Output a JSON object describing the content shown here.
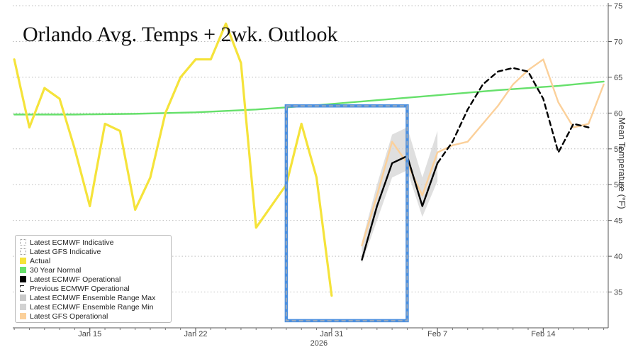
{
  "chart_data": {
    "type": "line",
    "title": "Orlando Avg. Temps + 2wk. Outlook",
    "ylabel": "Mean Temperature (°F)",
    "year_label": "2026",
    "ylim": [
      30,
      75
    ],
    "y_ticks": [
      35,
      40,
      45,
      50,
      55,
      60,
      65,
      70,
      75
    ],
    "x_range": [
      "2026-01-10",
      "2026-02-18"
    ],
    "x_ticks": [
      {
        "date": "2026-01-15",
        "label": "Jan 15"
      },
      {
        "date": "2026-01-22",
        "label": "Jan 22"
      },
      {
        "date": "2026-01-31",
        "label": "Jan 31"
      },
      {
        "date": "2026-02-07",
        "label": "Feb 7"
      },
      {
        "date": "2026-02-14",
        "label": "Feb 14"
      }
    ],
    "grid": "horizontal dotted",
    "legend_position": "bottom-left",
    "highlight_box": {
      "x": [
        "2026-01-28",
        "2026-02-05"
      ],
      "y": [
        31,
        61
      ]
    },
    "series": [
      {
        "name": "Actual",
        "color": "#f5e33a",
        "style": "solid",
        "x": [
          "2026-01-10",
          "2026-01-11",
          "2026-01-12",
          "2026-01-13",
          "2026-01-14",
          "2026-01-15",
          "2026-01-16",
          "2026-01-17",
          "2026-01-18",
          "2026-01-19",
          "2026-01-20",
          "2026-01-21",
          "2026-01-22",
          "2026-01-23",
          "2026-01-24",
          "2026-01-25",
          "2026-01-26",
          "2026-01-27",
          "2026-01-28",
          "2026-01-29",
          "2026-01-30",
          "2026-01-31",
          "2026-02-01"
        ],
        "y": [
          67.5,
          58,
          63.5,
          62,
          55,
          47,
          58.5,
          57.5,
          46.5,
          51,
          60,
          65,
          67.5,
          67.5,
          72.5,
          67,
          44,
          47,
          50,
          58.5,
          51,
          34.5,
          null
        ]
      },
      {
        "name": "30 Year Normal",
        "color": "#66e06b",
        "style": "solid",
        "x": [
          "2026-01-10",
          "2026-01-14",
          "2026-01-18",
          "2026-01-22",
          "2026-01-26",
          "2026-01-30",
          "2026-02-03",
          "2026-02-07",
          "2026-02-11",
          "2026-02-15",
          "2026-02-18"
        ],
        "y": [
          59.8,
          59.8,
          59.9,
          60.1,
          60.5,
          61.1,
          61.8,
          62.5,
          63.2,
          63.8,
          64.4
        ]
      },
      {
        "name": "Latest ECMWF Operational",
        "color": "#000000",
        "style": "solid",
        "x": [
          "2026-02-02",
          "2026-02-03",
          "2026-02-04",
          "2026-02-05",
          "2026-02-06",
          "2026-02-07"
        ],
        "y": [
          39.5,
          47,
          53,
          54,
          47,
          53
        ]
      },
      {
        "name": "Previous ECMWF Operational",
        "color": "#000000",
        "style": "dashed",
        "x": [
          "2026-02-07",
          "2026-02-08",
          "2026-02-09",
          "2026-02-10",
          "2026-02-11",
          "2026-02-12",
          "2026-02-13",
          "2026-02-14",
          "2026-02-15",
          "2026-02-16",
          "2026-02-17"
        ],
        "y": [
          53,
          56,
          60.5,
          64,
          65.8,
          66.3,
          65.8,
          62,
          54.5,
          58.5,
          58
        ]
      },
      {
        "name": "Latest GFS Operational",
        "color": "#fbd09a",
        "style": "solid",
        "x": [
          "2026-02-02",
          "2026-02-03",
          "2026-02-04",
          "2026-02-05",
          "2026-02-06",
          "2026-02-07",
          "2026-02-08",
          "2026-02-09",
          "2026-02-10",
          "2026-02-11",
          "2026-02-12",
          "2026-02-13",
          "2026-02-14",
          "2026-02-15",
          "2026-02-16",
          "2026-02-17",
          "2026-02-18"
        ],
        "y": [
          41.5,
          48.5,
          56,
          53,
          48.5,
          54.5,
          55.5,
          56,
          58.5,
          61,
          64,
          66,
          67.5,
          61.5,
          58,
          58.5,
          64
        ]
      }
    ],
    "ensemble_range": {
      "x": [
        "2026-02-02",
        "2026-02-03",
        "2026-02-04",
        "2026-02-05",
        "2026-02-06",
        "2026-02-07"
      ],
      "max": [
        42,
        50,
        57,
        58,
        51,
        57.5
      ],
      "min": [
        39,
        45,
        51,
        52,
        45.5,
        50.5
      ]
    },
    "legend": [
      {
        "label": "Latest ECMWF Indicative",
        "swatch": "dotted-empty"
      },
      {
        "label": "Latest GFS Indicative",
        "swatch": "dotted-empty"
      },
      {
        "label": "Actual",
        "color": "#f5e33a"
      },
      {
        "label": "30 Year Normal",
        "color": "#66e06b"
      },
      {
        "label": "Latest ECMWF Operational",
        "color": "#000000"
      },
      {
        "label": "Previous ECMWF Operational",
        "swatch": "bracket"
      },
      {
        "label": "Latest ECMWF Ensemble Range Max",
        "color": "#c8c8c8"
      },
      {
        "label": "Latest ECMWF Ensemble Range Min",
        "color": "#d2d2d2"
      },
      {
        "label": "Latest GFS Operational",
        "color": "#fbd09a"
      }
    ]
  }
}
